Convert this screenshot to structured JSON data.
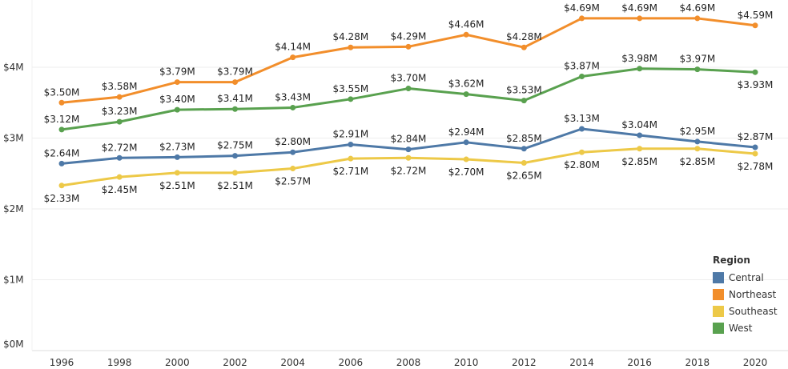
{
  "chart_data": {
    "type": "line",
    "title": "",
    "xlabel": "",
    "ylabel": "",
    "x": [
      1996,
      1998,
      2000,
      2002,
      2004,
      2006,
      2008,
      2010,
      2012,
      2014,
      2016,
      2018,
      2020
    ],
    "y_ticks": [
      "$0M",
      "$1M",
      "$2M",
      "$3M",
      "$4M"
    ],
    "ylim": [
      0,
      4.8
    ],
    "grid": true,
    "legend": {
      "title": "Region",
      "placement": "bottom-right"
    },
    "series": [
      {
        "name": "Central",
        "color": "#4e79a7",
        "values": [
          2.64,
          2.72,
          2.73,
          2.75,
          2.8,
          2.91,
          2.84,
          2.94,
          2.85,
          3.13,
          3.04,
          2.95,
          2.87
        ],
        "labels": [
          "$2.64M",
          "$2.72M",
          "$2.73M",
          "$2.75M",
          "$2.80M",
          "$2.91M",
          "$2.84M",
          "$2.94M",
          "$2.85M",
          "$3.13M",
          "$3.04M",
          "$2.95M",
          "$2.87M"
        ]
      },
      {
        "name": "Northeast",
        "color": "#f28e2b",
        "values": [
          3.5,
          3.58,
          3.79,
          3.79,
          4.14,
          4.28,
          4.29,
          4.46,
          4.28,
          4.69,
          4.69,
          4.69,
          4.59
        ],
        "labels": [
          "$3.50M",
          "$3.58M",
          "$3.79M",
          "$3.79M",
          "$4.14M",
          "$4.28M",
          "$4.29M",
          "$4.46M",
          "$4.28M",
          "$4.69M",
          "$4.69M",
          "$4.69M",
          "$4.59M"
        ]
      },
      {
        "name": "Southeast",
        "color": "#edc948",
        "values": [
          2.33,
          2.45,
          2.51,
          2.51,
          2.57,
          2.71,
          2.72,
          2.7,
          2.65,
          2.8,
          2.85,
          2.85,
          2.78
        ],
        "labels": [
          "$2.33M",
          "$2.45M",
          "$2.51M",
          "$2.51M",
          "$2.57M",
          "$2.71M",
          "$2.72M",
          "$2.70M",
          "$2.65M",
          "$2.80M",
          "$2.85M",
          "$2.85M",
          "$2.78M"
        ]
      },
      {
        "name": "West",
        "color": "#59a14f",
        "values": [
          3.12,
          3.23,
          3.4,
          3.41,
          3.43,
          3.55,
          3.7,
          3.62,
          3.53,
          3.87,
          3.98,
          3.97,
          3.93
        ],
        "labels": [
          "$3.12M",
          "$3.23M",
          "$3.40M",
          "$3.41M",
          "$3.43M",
          "$3.55M",
          "$3.70M",
          "$3.62M",
          "$3.53M",
          "$3.87M",
          "$3.98M",
          "$3.97M",
          "$3.93M"
        ]
      }
    ]
  }
}
